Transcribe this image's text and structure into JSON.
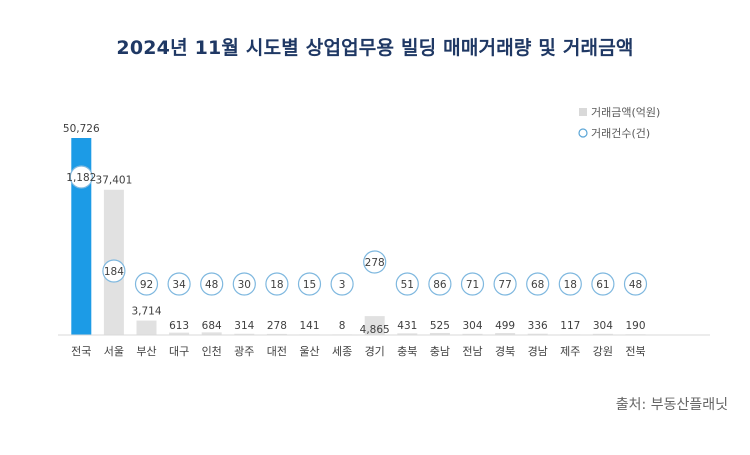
{
  "source": "출처: 부동산플래닛",
  "colors": {
    "highlight_bar": "#1c9be6",
    "bar": "#e1e1e1",
    "circle": "#7fb8df",
    "title": "#1f3864",
    "text": "#404040"
  },
  "chart_data": {
    "type": "bar",
    "title": "2024년 11월 시도별 상업업무용 빌딩 매매거래량 및 거래금액",
    "categories": [
      "전국",
      "서울",
      "부산",
      "대구",
      "인천",
      "광주",
      "대전",
      "울산",
      "세종",
      "경기",
      "충북",
      "충남",
      "전남",
      "경북",
      "경남",
      "제주",
      "강원",
      "전북"
    ],
    "series": [
      {
        "name": "거래금액(억원)",
        "type": "bar",
        "values": [
          50726,
          37401,
          3714,
          613,
          684,
          314,
          278,
          141,
          8,
          4865,
          431,
          525,
          304,
          499,
          336,
          117,
          304,
          190
        ],
        "labels": [
          "50,726",
          "37,401",
          "3,714",
          "613",
          "684",
          "314",
          "278",
          "141",
          "8",
          "4,865",
          "431",
          "525",
          "304",
          "499",
          "336",
          "117",
          "304",
          "190"
        ]
      },
      {
        "name": "거래건수(건)",
        "type": "scatter",
        "values": [
          1182,
          184,
          92,
          34,
          48,
          30,
          18,
          15,
          3,
          278,
          51,
          86,
          71,
          77,
          68,
          18,
          61,
          48
        ],
        "labels": [
          "1,182",
          "184",
          "92",
          "34",
          "48",
          "30",
          "18",
          "15",
          "3",
          "278",
          "51",
          "86",
          "71",
          "77",
          "68",
          "18",
          "61",
          "48"
        ]
      }
    ],
    "legend_position": "top-right",
    "grid": false
  }
}
